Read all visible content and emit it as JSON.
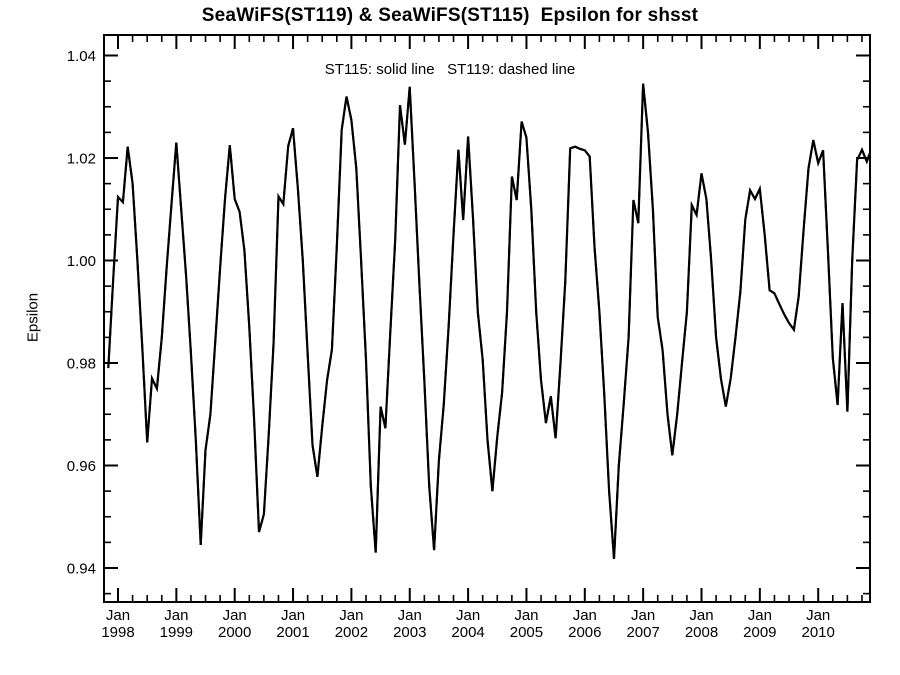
{
  "page": {
    "background": "#ffffff",
    "foreground": "#000000"
  },
  "chart_data": {
    "type": "line",
    "title": "SeaWiFS(ST119) & SeaWiFS(ST115)  Epsilon for shsst",
    "annotation": "ST115: solid line   ST119: dashed line",
    "xlabel": "",
    "ylabel": "Epsilon",
    "line_color": "#000000",
    "grid": false,
    "legend_position": "top-center-inside",
    "ylim": [
      0.9335,
      1.044
    ],
    "y_major_ticks": [
      0.94,
      0.96,
      0.98,
      1.0,
      1.02,
      1.04
    ],
    "y_tick_labels": [
      "0.94",
      "0.96",
      "0.98",
      "1.00",
      "1.02",
      "1.04"
    ],
    "y_minor_step": 0.005,
    "x_major_tick_years": [
      1998,
      1999,
      2000,
      2001,
      2002,
      2003,
      2004,
      2005,
      2006,
      2007,
      2008,
      2009,
      2010
    ],
    "x_tick_month_label": "Jan",
    "x_minor_ticks_per_year": 4,
    "x_axis_note": "time axis, monthly data from Nov 1997 through Dec 2010",
    "series": [
      {
        "name": "ST115",
        "style": "solid",
        "cadence": "monthly",
        "start": {
          "year": 1997,
          "month": 11
        },
        "values_by_year": {
          "1997": [
            0.979,
            0.996
          ],
          "1998": [
            1.0124,
            1.0114,
            1.0222,
            1.015,
            1.0,
            0.983,
            0.9645,
            0.977,
            0.975,
            0.985,
            0.9985,
            1.011
          ],
          "1999": [
            1.023,
            1.01,
            0.997,
            0.982,
            0.965,
            0.9445,
            0.963,
            0.97,
            0.984,
            0.9985,
            1.012,
            1.0225
          ],
          "2000": [
            1.012,
            1.0095,
            1.002,
            0.987,
            0.969,
            0.947,
            0.9505,
            0.966,
            0.984,
            1.0125,
            1.011,
            1.0223
          ],
          "2001": [
            1.0258,
            1.014,
            1.0,
            0.982,
            0.964,
            0.9578,
            0.9676,
            0.9767,
            0.9826,
            1.0027,
            1.0255,
            1.032
          ],
          "2002": [
            1.0274,
            1.018,
            1.0,
            0.9806,
            0.956,
            0.943,
            0.9715,
            0.9673,
            0.986,
            1.004,
            1.0303,
            1.0226
          ],
          "2003": [
            1.0339,
            1.015,
            0.995,
            0.9767,
            0.956,
            0.9435,
            0.961,
            0.972,
            0.987,
            1.005,
            1.0216,
            1.0079
          ],
          "2004": [
            1.0242,
            1.0083,
            0.99,
            0.9806,
            0.965,
            0.955,
            0.9657,
            0.9742,
            0.99,
            1.0164,
            1.0118,
            1.0271
          ],
          "2005": [
            1.024,
            1.01,
            0.99,
            0.9767,
            0.9683,
            0.9735,
            0.9653,
            0.98,
            0.996,
            1.0219,
            1.0222,
            1.0218
          ],
          "2006": [
            1.0215,
            1.0203,
            1.0027,
            0.99,
            0.9741,
            0.955,
            0.9418,
            0.96,
            0.972,
            0.985,
            1.0118,
            1.0073
          ],
          "2007": [
            1.0345,
            1.025,
            1.01,
            0.989,
            0.9825,
            0.97,
            0.962,
            0.97,
            0.98,
            0.99,
            1.0108,
            1.0089
          ],
          "2008": [
            1.017,
            1.012,
            1.0,
            0.985,
            0.977,
            0.9715,
            0.977,
            0.985,
            0.994,
            1.008,
            1.0137,
            1.012
          ],
          "2009": [
            1.014,
            1.005,
            0.9942,
            0.9936,
            0.9915,
            0.9895,
            0.9878,
            0.9865,
            0.993,
            1.006,
            1.018,
            1.0235
          ],
          "2010": [
            1.019,
            1.0215,
            1.002,
            0.981,
            0.9718,
            0.9917,
            0.9705,
            1.0,
            1.0196,
            1.0216,
            1.0193,
            1.0219
          ]
        }
      },
      {
        "name": "ST119",
        "style": "dashed",
        "cadence": "monthly",
        "points_ref": "ST115",
        "note": "dashed ST119 curve coincides with the solid ST115 curve (lines overlap)"
      }
    ]
  }
}
